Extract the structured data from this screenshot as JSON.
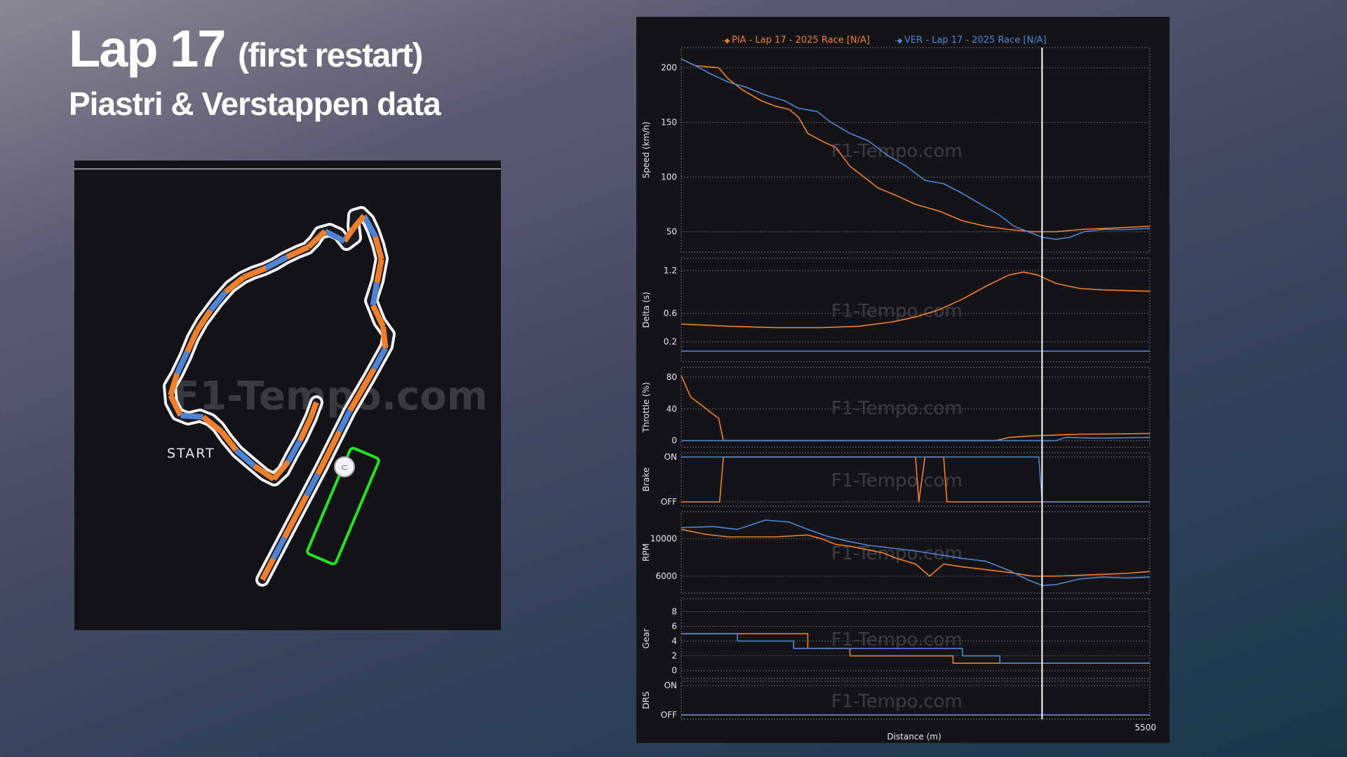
{
  "header": {
    "lap_title": "Lap 17",
    "lap_subtitle": "(first restart)",
    "drivers_line": "Piastri & Verstappen data"
  },
  "track_map": {
    "start_label": "START",
    "watermark": "F1-Tempo.com",
    "colors": {
      "pia": "#f07f2c",
      "ver": "#4e84d6",
      "highlight_box": "#22e322"
    }
  },
  "chart_data": {
    "type": "line",
    "watermark": "F1-Tempo.com",
    "xlabel": "Distance (m)",
    "x_end_label": "5500",
    "cursor_x": 0.77,
    "legend": [
      {
        "name": "PIA - Lap 17 - 2025 Race [N/A]",
        "color": "#f07f2c"
      },
      {
        "name": "VER - Lap 17 - 2025 Race [N/A]",
        "color": "#4e84d6"
      }
    ],
    "panels": [
      {
        "key": "speed",
        "ylabel": "Speed (km/h)",
        "ylim": [
          35,
          212
        ],
        "ticks": [
          {
            "v": 200,
            "label": "200"
          },
          {
            "v": 150,
            "label": "150"
          },
          {
            "v": 100,
            "label": "100"
          },
          {
            "v": 50,
            "label": "50"
          }
        ],
        "series": [
          {
            "name": "PIA",
            "color": "#f07f2c",
            "points": [
              [
                0,
                208
              ],
              [
                0.03,
                202
              ],
              [
                0.08,
                200
              ],
              [
                0.1,
                190
              ],
              [
                0.13,
                180
              ],
              [
                0.17,
                170
              ],
              [
                0.2,
                165
              ],
              [
                0.23,
                162
              ],
              [
                0.25,
                155
              ],
              [
                0.27,
                140
              ],
              [
                0.3,
                133
              ],
              [
                0.33,
                127
              ],
              [
                0.36,
                110
              ],
              [
                0.39,
                100
              ],
              [
                0.42,
                90
              ],
              [
                0.46,
                83
              ],
              [
                0.5,
                75
              ],
              [
                0.55,
                69
              ],
              [
                0.6,
                60
              ],
              [
                0.65,
                55
              ],
              [
                0.7,
                52
              ],
              [
                0.75,
                50
              ],
              [
                0.8,
                50
              ],
              [
                0.85,
                52
              ],
              [
                0.9,
                53
              ],
              [
                0.95,
                54
              ],
              [
                1.0,
                55
              ]
            ]
          },
          {
            "name": "VER",
            "color": "#4e84d6",
            "points": [
              [
                0,
                208
              ],
              [
                0.03,
                202
              ],
              [
                0.06,
                195
              ],
              [
                0.1,
                187
              ],
              [
                0.14,
                182
              ],
              [
                0.18,
                175
              ],
              [
                0.22,
                170
              ],
              [
                0.25,
                163
              ],
              [
                0.29,
                160
              ],
              [
                0.32,
                150
              ],
              [
                0.36,
                140
              ],
              [
                0.4,
                133
              ],
              [
                0.44,
                120
              ],
              [
                0.48,
                110
              ],
              [
                0.52,
                97
              ],
              [
                0.56,
                94
              ],
              [
                0.6,
                85
              ],
              [
                0.64,
                75
              ],
              [
                0.68,
                65
              ],
              [
                0.71,
                55
              ],
              [
                0.74,
                50
              ],
              [
                0.77,
                45
              ],
              [
                0.8,
                43
              ],
              [
                0.83,
                45
              ],
              [
                0.86,
                50
              ],
              [
                0.9,
                52
              ],
              [
                0.95,
                52
              ],
              [
                1.0,
                53
              ]
            ]
          }
        ]
      },
      {
        "key": "delta",
        "ylabel": "Delta (s)",
        "ylim": [
          0,
          1.3
        ],
        "ticks": [
          {
            "v": 1.2,
            "label": "1.2"
          },
          {
            "v": 0.6,
            "label": "0.6"
          },
          {
            "v": 0.2,
            "label": "0.2"
          }
        ],
        "series": [
          {
            "name": "PIA",
            "color": "#f07f2c",
            "points": [
              [
                0,
                0.45
              ],
              [
                0.1,
                0.42
              ],
              [
                0.2,
                0.4
              ],
              [
                0.3,
                0.4
              ],
              [
                0.38,
                0.42
              ],
              [
                0.45,
                0.48
              ],
              [
                0.5,
                0.55
              ],
              [
                0.55,
                0.65
              ],
              [
                0.6,
                0.8
              ],
              [
                0.65,
                0.98
              ],
              [
                0.7,
                1.14
              ],
              [
                0.73,
                1.18
              ],
              [
                0.76,
                1.14
              ],
              [
                0.8,
                1.02
              ],
              [
                0.85,
                0.95
              ],
              [
                0.9,
                0.93
              ],
              [
                0.95,
                0.92
              ],
              [
                1.0,
                0.91
              ]
            ]
          },
          {
            "name": "VER",
            "color": "#4e84d6",
            "points": [
              [
                0,
                0.07
              ],
              [
                1.0,
                0.07
              ]
            ]
          }
        ]
      },
      {
        "key": "throttle",
        "ylabel": "Throttle (%)",
        "ylim": [
          -3,
          87
        ],
        "ticks": [
          {
            "v": 80,
            "label": "80"
          },
          {
            "v": 40,
            "label": "40"
          },
          {
            "v": 0,
            "label": "0"
          }
        ],
        "series": [
          {
            "name": "PIA",
            "color": "#f07f2c",
            "points": [
              [
                0,
                82
              ],
              [
                0.02,
                55
              ],
              [
                0.08,
                28
              ],
              [
                0.09,
                0
              ],
              [
                0.67,
                0
              ],
              [
                0.7,
                4
              ],
              [
                0.75,
                6
              ],
              [
                0.85,
                8
              ],
              [
                1.0,
                9
              ]
            ]
          },
          {
            "name": "VER",
            "color": "#4e84d6",
            "points": [
              [
                0,
                0
              ],
              [
                0.8,
                0
              ],
              [
                0.82,
                4
              ],
              [
                0.9,
                3
              ],
              [
                1.0,
                4
              ]
            ]
          }
        ]
      },
      {
        "key": "brake",
        "ylabel": "Brake",
        "ylim": [
          0,
          1
        ],
        "ticks": [
          {
            "v": 1,
            "label": "ON"
          },
          {
            "v": 0,
            "label": "OFF"
          }
        ],
        "series": [
          {
            "name": "PIA",
            "color": "#f07f2c",
            "points": [
              [
                0,
                0
              ],
              [
                0.082,
                0
              ],
              [
                0.09,
                1
              ],
              [
                0.5,
                1
              ],
              [
                0.507,
                0
              ],
              [
                0.52,
                1
              ],
              [
                0.56,
                1
              ],
              [
                0.567,
                0
              ],
              [
                1.0,
                0
              ]
            ]
          },
          {
            "name": "VER",
            "color": "#4e84d6",
            "points": [
              [
                0,
                1
              ],
              [
                0.763,
                1
              ],
              [
                0.77,
                0
              ],
              [
                1.0,
                0
              ]
            ]
          }
        ]
      },
      {
        "key": "rpm",
        "ylabel": "RPM",
        "ylim": [
          4800,
          12300
        ],
        "ticks": [
          {
            "v": 10000,
            "label": "10000"
          },
          {
            "v": 6000,
            "label": "6000"
          }
        ],
        "series": [
          {
            "name": "PIA",
            "color": "#f07f2c",
            "points": [
              [
                0,
                11000
              ],
              [
                0.05,
                10500
              ],
              [
                0.1,
                10200
              ],
              [
                0.2,
                10200
              ],
              [
                0.27,
                10400
              ],
              [
                0.3,
                10000
              ],
              [
                0.33,
                9400
              ],
              [
                0.36,
                9200
              ],
              [
                0.4,
                8800
              ],
              [
                0.43,
                8500
              ],
              [
                0.46,
                7900
              ],
              [
                0.5,
                7300
              ],
              [
                0.53,
                6000
              ],
              [
                0.56,
                7300
              ],
              [
                0.6,
                7000
              ],
              [
                0.65,
                6700
              ],
              [
                0.7,
                6400
              ],
              [
                0.75,
                6000
              ],
              [
                0.8,
                6000
              ],
              [
                0.85,
                6100
              ],
              [
                0.9,
                6200
              ],
              [
                0.95,
                6300
              ],
              [
                1.0,
                6500
              ]
            ]
          },
          {
            "name": "VER",
            "color": "#4e84d6",
            "points": [
              [
                0,
                11200
              ],
              [
                0.07,
                11300
              ],
              [
                0.12,
                11000
              ],
              [
                0.18,
                12000
              ],
              [
                0.23,
                11800
              ],
              [
                0.27,
                11000
              ],
              [
                0.31,
                10300
              ],
              [
                0.35,
                9800
              ],
              [
                0.4,
                9300
              ],
              [
                0.45,
                9000
              ],
              [
                0.5,
                8700
              ],
              [
                0.55,
                8300
              ],
              [
                0.6,
                7900
              ],
              [
                0.65,
                7600
              ],
              [
                0.7,
                6600
              ],
              [
                0.74,
                5600
              ],
              [
                0.77,
                5000
              ],
              [
                0.8,
                5100
              ],
              [
                0.85,
                5700
              ],
              [
                0.9,
                5900
              ],
              [
                0.95,
                5800
              ],
              [
                1.0,
                5900
              ]
            ]
          }
        ]
      },
      {
        "key": "gear",
        "ylabel": "Gear",
        "ylim": [
          -0.5,
          9
        ],
        "ticks": [
          {
            "v": 8,
            "label": "8"
          },
          {
            "v": 6,
            "label": "6"
          },
          {
            "v": 4,
            "label": "4"
          },
          {
            "v": 2,
            "label": "2"
          },
          {
            "v": 0,
            "label": "0"
          }
        ],
        "series": [
          {
            "name": "PIA",
            "color": "#f07f2c",
            "points": [
              [
                0,
                5
              ],
              [
                0.27,
                5
              ],
              [
                0.27,
                3
              ],
              [
                0.36,
                3
              ],
              [
                0.36,
                2
              ],
              [
                0.58,
                2
              ],
              [
                0.58,
                1
              ],
              [
                1.0,
                1
              ]
            ]
          },
          {
            "name": "VER",
            "color": "#4e84d6",
            "points": [
              [
                0,
                5
              ],
              [
                0.12,
                5
              ],
              [
                0.12,
                4
              ],
              [
                0.24,
                4
              ],
              [
                0.24,
                3
              ],
              [
                0.6,
                3
              ],
              [
                0.6,
                2
              ],
              [
                0.68,
                2
              ],
              [
                0.68,
                1
              ],
              [
                1.0,
                1
              ]
            ]
          }
        ]
      },
      {
        "key": "drs",
        "ylabel": "DRS",
        "ylim": [
          0,
          1
        ],
        "ticks": [
          {
            "v": 1,
            "label": "ON"
          },
          {
            "v": 0,
            "label": "OFF"
          }
        ],
        "series": [
          {
            "name": "PIA",
            "color": "#f07f2c",
            "points": [
              [
                0,
                0
              ],
              [
                1.0,
                0
              ]
            ]
          },
          {
            "name": "VER",
            "color": "#4e84d6",
            "points": [
              [
                0,
                0
              ],
              [
                1.0,
                0
              ]
            ]
          }
        ]
      }
    ]
  }
}
